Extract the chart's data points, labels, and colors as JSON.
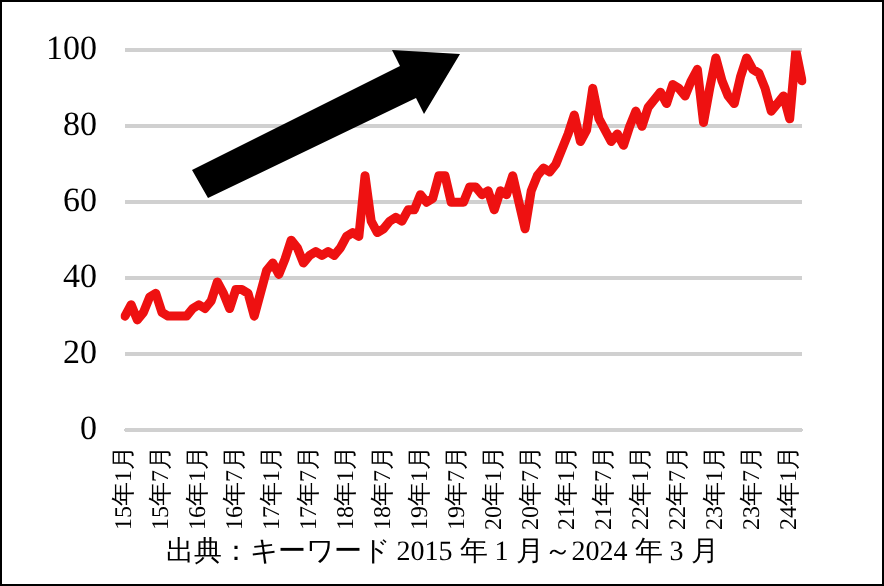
{
  "chart_data": {
    "type": "line",
    "categories": [
      "15年1月",
      null,
      null,
      null,
      null,
      null,
      "15年7月",
      null,
      null,
      null,
      null,
      null,
      "16年1月",
      null,
      null,
      null,
      null,
      null,
      "16年7月",
      null,
      null,
      null,
      null,
      null,
      "17年1月",
      null,
      null,
      null,
      null,
      null,
      "17年7月",
      null,
      null,
      null,
      null,
      null,
      "18年1月",
      null,
      null,
      null,
      null,
      null,
      "18年7月",
      null,
      null,
      null,
      null,
      null,
      "19年1月",
      null,
      null,
      null,
      null,
      null,
      "19年7月",
      null,
      null,
      null,
      null,
      null,
      "20年1月",
      null,
      null,
      null,
      null,
      null,
      "20年7月",
      null,
      null,
      null,
      null,
      null,
      "21年1月",
      null,
      null,
      null,
      null,
      null,
      "21年7月",
      null,
      null,
      null,
      null,
      null,
      "22年1月",
      null,
      null,
      null,
      null,
      null,
      "22年7月",
      null,
      null,
      null,
      null,
      null,
      "23年1月",
      null,
      null,
      null,
      null,
      null,
      "23年7月",
      null,
      null,
      null,
      null,
      null,
      "24年1月",
      null,
      null
    ],
    "series": [
      {
        "color": "#ee1111",
        "values": [
          30,
          33,
          29,
          31,
          35,
          36,
          31,
          30,
          30,
          30,
          30,
          32,
          33,
          32,
          34,
          39,
          36,
          32,
          37,
          37,
          36,
          30,
          36,
          42,
          44,
          41,
          45,
          50,
          48,
          44,
          46,
          47,
          46,
          47,
          46,
          48,
          51,
          52,
          51,
          67,
          55,
          52,
          53,
          55,
          56,
          55,
          58,
          58,
          62,
          60,
          61,
          67,
          67,
          60,
          60,
          60,
          64,
          64,
          62,
          63,
          58,
          63,
          62,
          67,
          60,
          53,
          63,
          67,
          69,
          68,
          70,
          74,
          78,
          83,
          76,
          79,
          90,
          82,
          79,
          76,
          78,
          75,
          80,
          84,
          80,
          85,
          87,
          89,
          86,
          91,
          90,
          88,
          92,
          95,
          81,
          90,
          98,
          92,
          88,
          86,
          93,
          98,
          95,
          94,
          90,
          84,
          86,
          88,
          82,
          100,
          92
        ]
      }
    ],
    "ylim": [
      0,
      100
    ],
    "yticks": [
      0,
      20,
      40,
      60,
      80,
      100
    ],
    "grid": "y",
    "legend": false,
    "marker": "none",
    "line_style": "solid",
    "annotations": [
      "出典：キーワード  2015 年 1 月～2024 年 3 月"
    ]
  }
}
